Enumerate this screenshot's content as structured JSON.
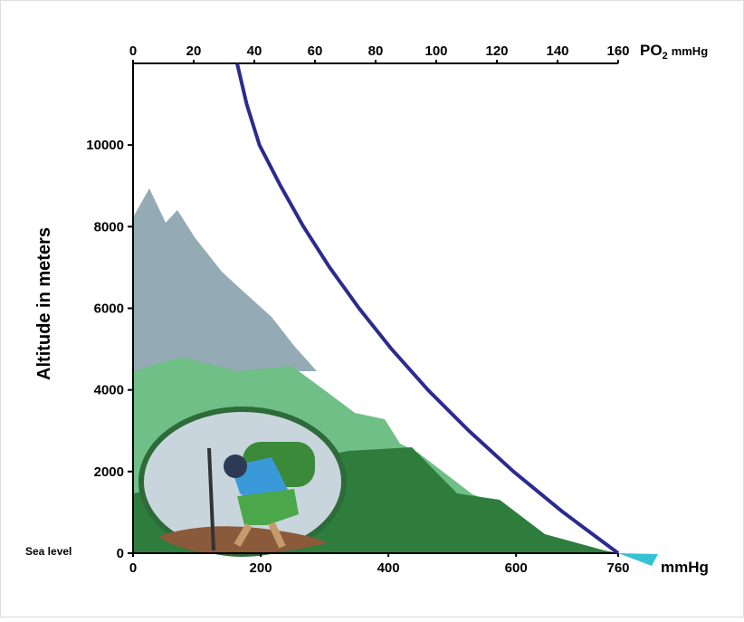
{
  "chart_data": {
    "type": "line",
    "y_label": "Altitude in meters",
    "x_label": "mmHg",
    "x2_label": "PO",
    "x2_label_subscript": "2",
    "x2_label_unit": "mmHg",
    "annotation": "Sea level",
    "xlim": [
      0,
      760
    ],
    "xticks": [
      0,
      200,
      400,
      600,
      760
    ],
    "x2lim": [
      0,
      160
    ],
    "x2ticks": [
      0,
      20,
      40,
      60,
      80,
      100,
      120,
      140,
      160
    ],
    "ylim": [
      0,
      12000
    ],
    "yticks": [
      0,
      2000,
      4000,
      6000,
      8000,
      10000
    ],
    "series": [
      {
        "color": "#2b2b8f",
        "x": [
          760,
          674,
          596,
          526,
          462,
          405,
          354,
          308,
          267,
          231,
          198,
          178,
          163
        ],
        "values": [
          0,
          1000,
          2000,
          3000,
          4000,
          5000,
          6000,
          7000,
          8000,
          9000,
          10000,
          11000,
          12000
        ]
      }
    ]
  }
}
